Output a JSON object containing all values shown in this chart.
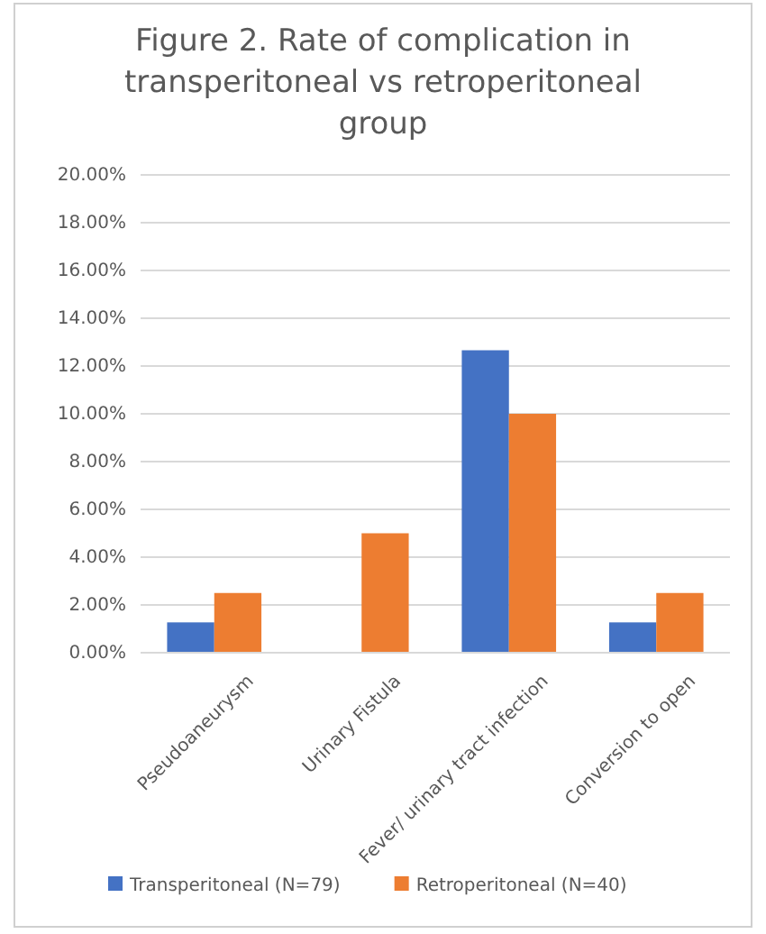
{
  "chart_data": {
    "type": "bar",
    "title": "Figure 2. Rate of complication in transperitoneal vs retroperitoneal group",
    "categories": [
      "Pseudoaneurysm",
      "Urinary Fistula",
      "Fever/ urinary tract infection",
      "Conversion to open"
    ],
    "series": [
      {
        "name": "Transperitoneal (N=79)",
        "color": "#4472c4",
        "values": [
          1.27,
          0,
          12.66,
          1.27
        ]
      },
      {
        "name": "Retroperitoneal (N=40)",
        "color": "#ed7d31",
        "values": [
          2.5,
          5,
          10,
          2.5
        ]
      }
    ],
    "ylim": [
      0,
      20
    ],
    "yticks": [
      {
        "value": 0,
        "label": "0.00%"
      },
      {
        "value": 2,
        "label": "2.00%"
      },
      {
        "value": 4,
        "label": "4.00%"
      },
      {
        "value": 6,
        "label": "6.00%"
      },
      {
        "value": 8,
        "label": "8.00%"
      },
      {
        "value": 10,
        "label": "10.00%"
      },
      {
        "value": 12,
        "label": "12.00%"
      },
      {
        "value": 14,
        "label": "14.00%"
      },
      {
        "value": 16,
        "label": "16.00%"
      },
      {
        "value": 18,
        "label": "18.00%"
      },
      {
        "value": 20,
        "label": "20.00%"
      }
    ],
    "grid": "y",
    "legend": "bottom"
  }
}
